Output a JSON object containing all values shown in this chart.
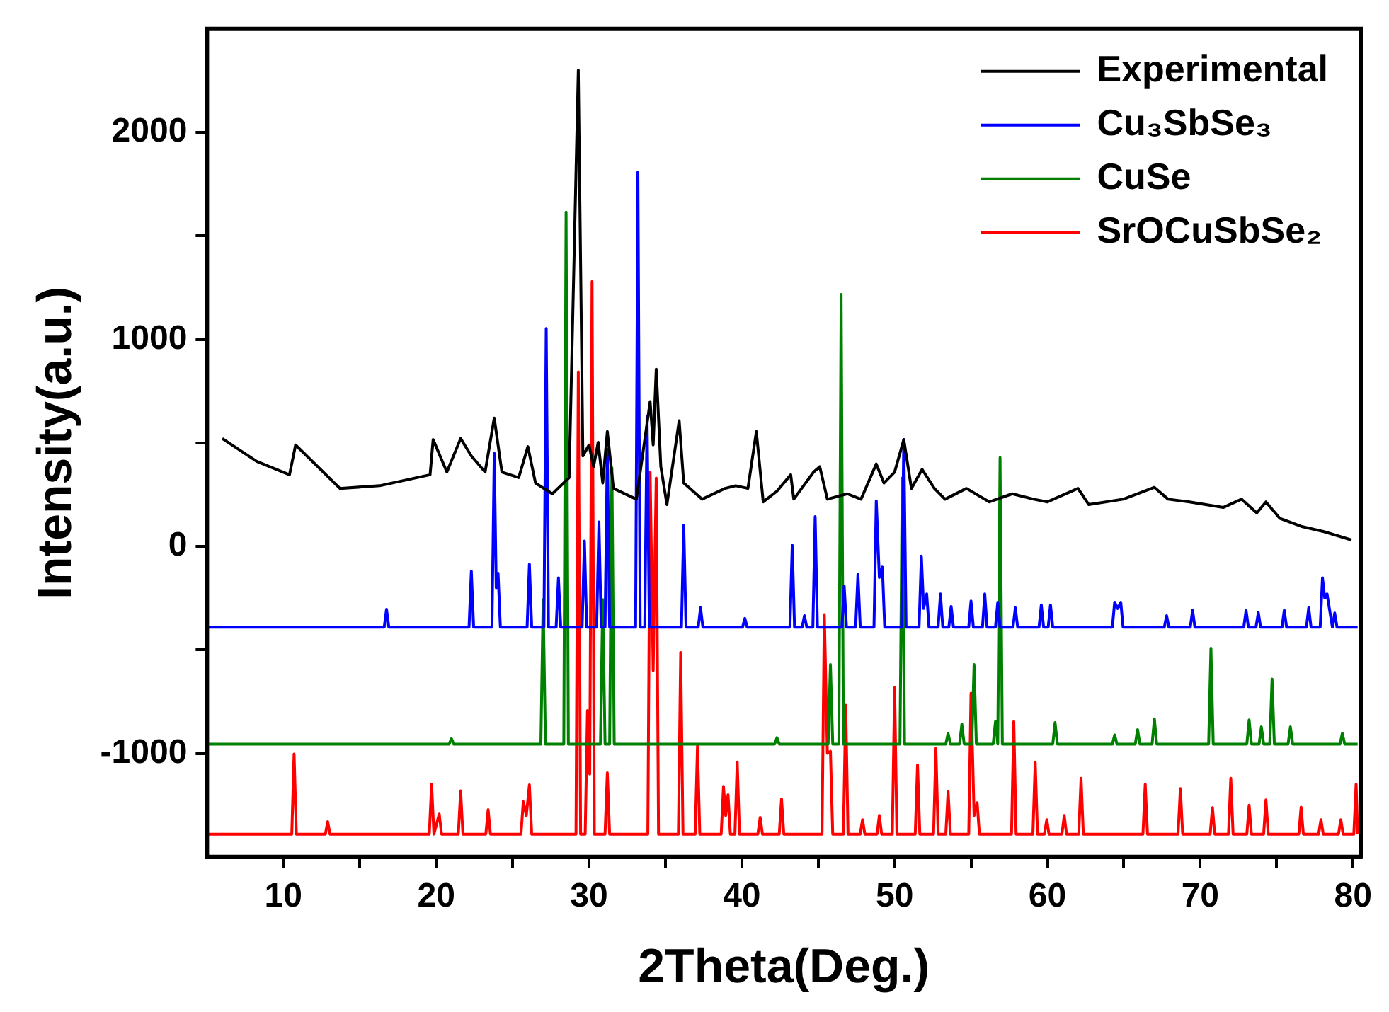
{
  "chart_data": {
    "type": "line",
    "xlabel": "2Theta(Deg.)",
    "ylabel": "Intensity(a.u.)",
    "xlim": [
      5,
      80.5
    ],
    "ylim": [
      -1500,
      2500
    ],
    "xticks": [
      10,
      {
        "value": 15,
        "label": null
      },
      20,
      {
        "value": 25,
        "label": null
      },
      30,
      {
        "value": 35,
        "label": null
      },
      40,
      {
        "value": 45,
        "label": null
      },
      50,
      {
        "value": 55,
        "label": null
      },
      60,
      {
        "value": 65,
        "label": null
      },
      70,
      {
        "value": 75,
        "label": null
      },
      80
    ],
    "yticks": [
      -1000,
      {
        "value": -500,
        "label": null
      },
      0,
      {
        "value": 500,
        "label": null
      },
      1000,
      {
        "value": 1500,
        "label": null
      },
      2000
    ],
    "grid": false,
    "legend": "top right",
    "marker": "none",
    "line_style": "solid",
    "series": [
      {
        "name": "Experimental",
        "color": "#000000",
        "x": [
          6,
          8.25,
          10.4,
          10.8,
          13.7,
          16.3,
          19.6,
          19.8,
          20.7,
          21.6,
          22.3,
          23.2,
          23.8,
          24.3,
          25.4,
          26.0,
          26.5,
          27.6,
          28.7,
          29.3,
          29.6,
          30.0,
          30.3,
          30.6,
          30.9,
          31.2,
          31.6,
          33.1,
          33.8,
          34.0,
          34.2,
          34.4,
          34.7,
          35.1,
          35.9,
          36.2,
          37.4,
          38.9,
          39.6,
          40.4,
          40.95,
          41.4,
          42.3,
          43.2,
          43.4,
          44.7,
          45.1,
          45.6,
          46.9,
          47.8,
          48.8,
          49.3,
          50.0,
          50.6,
          51.1,
          51.8,
          52.6,
          53.3,
          54.7,
          56.2,
          57.7,
          59.1,
          60.0,
          62.0,
          62.7,
          64.96,
          67.0,
          67.9,
          69.3,
          71.5,
          72.7,
          73.7,
          74.3,
          75.2,
          76.6,
          78.1,
          79.9
        ],
        "values": [
          521,
          411,
          346,
          490,
          280,
          293,
          346,
          516,
          359,
          521,
          437,
          359,
          620,
          359,
          332,
          482,
          306,
          254,
          332,
          2301,
          437,
          490,
          385,
          503,
          306,
          555,
          280,
          228,
          594,
          699,
          490,
          856,
          385,
          202,
          607,
          306,
          228,
          280,
          293,
          280,
          555,
          215,
          267,
          346,
          228,
          359,
          385,
          228,
          254,
          228,
          398,
          306,
          359,
          516,
          280,
          372,
          280,
          228,
          280,
          215,
          254,
          228,
          215,
          280,
          202,
          228,
          285,
          228,
          215,
          188,
          228,
          162,
          215,
          136,
          97,
          71,
          31
        ]
      },
      {
        "name": "Cu₃SbSe₃",
        "color": "#0000ff",
        "x": [
          5,
          16.6,
          16.75,
          16.9,
          22.15,
          22.3,
          22.45,
          23.65,
          23.8,
          23.93,
          24.05,
          24.2,
          25.95,
          26.1,
          26.25,
          27.05,
          27.2,
          27.35,
          27.85,
          28.0,
          28.15,
          29.55,
          29.7,
          29.85,
          30.5,
          30.65,
          30.8,
          31.05,
          31.2,
          31.35,
          33.05,
          33.2,
          33.35,
          33.65,
          33.8,
          33.95,
          36.05,
          36.2,
          36.35,
          37.15,
          37.3,
          37.45,
          40.05,
          40.2,
          40.35,
          43.15,
          43.3,
          43.45,
          43.95,
          44.1,
          44.25,
          44.65,
          44.8,
          44.95,
          46.55,
          46.7,
          46.85,
          47.45,
          47.6,
          47.75,
          48.65,
          48.8,
          49.0,
          49.2,
          49.35,
          50.45,
          50.6,
          50.75,
          51.6,
          51.75,
          51.9,
          52.1,
          52.25,
          52.85,
          53.0,
          53.15,
          53.55,
          53.7,
          53.85,
          54.85,
          55.0,
          55.15,
          55.75,
          55.9,
          56.05,
          56.6,
          56.75,
          56.9,
          57.75,
          57.9,
          58.05,
          59.45,
          59.6,
          59.75,
          60.05,
          60.2,
          60.35,
          64.25,
          64.4,
          64.6,
          64.8,
          64.95,
          67.65,
          67.8,
          67.95,
          69.35,
          69.5,
          69.65,
          72.85,
          73.0,
          73.15,
          73.65,
          73.8,
          73.95,
          75.35,
          75.5,
          75.65,
          76.95,
          77.1,
          77.25,
          77.85,
          78.0,
          78.15,
          78.3,
          78.45,
          78.65,
          78.8,
          78.95,
          80.3
        ],
        "values": [
          -390,
          -390,
          -304,
          -390,
          -390,
          -120,
          -390,
          -390,
          450,
          -200,
          -130,
          -390,
          -390,
          -86,
          -390,
          -390,
          1052,
          -390,
          -390,
          -152,
          -390,
          -390,
          26,
          -390,
          -390,
          118,
          -390,
          -390,
          469,
          -390,
          -390,
          1809,
          -390,
          -390,
          628,
          -390,
          -390,
          102,
          -390,
          -390,
          -296,
          -390,
          -390,
          -348,
          -390,
          -390,
          5,
          -390,
          -390,
          -335,
          -390,
          -390,
          144,
          -390,
          -390,
          -191,
          -390,
          -390,
          -134,
          -390,
          -390,
          220,
          -150,
          -100,
          -390,
          -390,
          516,
          -390,
          -390,
          -47,
          -300,
          -230,
          -390,
          -390,
          -230,
          -390,
          -390,
          -290,
          -390,
          -390,
          -264,
          -390,
          -390,
          -230,
          -390,
          -390,
          -270,
          -390,
          -390,
          -296,
          -390,
          -390,
          -283,
          -390,
          -390,
          -283,
          -390,
          -390,
          -270,
          -300,
          -270,
          -390,
          -390,
          -335,
          -390,
          -390,
          -309,
          -390,
          -390,
          -309,
          -390,
          -390,
          -320,
          -390,
          -390,
          -309,
          -390,
          -390,
          -296,
          -390,
          -390,
          -152,
          -250,
          -230,
          -300,
          -390,
          -322,
          -390,
          -390
        ]
      },
      {
        "name": "CuSe",
        "color": "#008000",
        "x": [
          5,
          20.85,
          21.0,
          21.15,
          26.85,
          27.0,
          27.15,
          28.35,
          28.5,
          28.65,
          30.75,
          30.9,
          31.05,
          31.35,
          31.5,
          31.65,
          42.15,
          42.3,
          42.45,
          45.65,
          45.8,
          45.95,
          46.35,
          46.5,
          46.65,
          50.35,
          50.5,
          50.65,
          53.35,
          53.5,
          53.65,
          54.25,
          54.4,
          54.55,
          55.05,
          55.2,
          55.35,
          56.45,
          56.6,
          56.75,
          56.9,
          57.05,
          60.35,
          60.5,
          60.65,
          64.25,
          64.4,
          64.55,
          65.75,
          65.9,
          66.05,
          66.85,
          67.0,
          67.15,
          70.55,
          70.7,
          70.85,
          73.05,
          73.2,
          73.35,
          73.85,
          74.0,
          74.15,
          74.55,
          74.7,
          74.85,
          75.75,
          75.9,
          76.05,
          79.15,
          79.3,
          79.45,
          80.3
        ],
        "values": [
          -955,
          -955,
          -929,
          -955,
          -955,
          -257,
          -955,
          -955,
          1615,
          -955,
          -955,
          -257,
          -955,
          -955,
          380,
          -955,
          -955,
          -924,
          -955,
          -955,
          -571,
          -955,
          -955,
          1217,
          -955,
          -955,
          330,
          -955,
          -955,
          -903,
          -955,
          -955,
          -859,
          -955,
          -955,
          -571,
          -955,
          -955,
          -846,
          -955,
          429,
          -955,
          -955,
          -851,
          -955,
          -955,
          -911,
          -955,
          -955,
          -885,
          -955,
          -955,
          -833,
          -955,
          -955,
          -492,
          -955,
          -955,
          -838,
          -955,
          -955,
          -872,
          -955,
          -955,
          -641,
          -955,
          -955,
          -872,
          -955,
          -955,
          -903,
          -955,
          -955
        ]
      },
      {
        "name": "SrOCuSbSe₂",
        "color": "#ff0000",
        "x": [
          5,
          10.55,
          10.7,
          10.85,
          12.75,
          12.9,
          13.05,
          19.55,
          19.7,
          19.85,
          20.2,
          20.35,
          21.45,
          21.6,
          21.75,
          23.25,
          23.4,
          23.55,
          25.55,
          25.7,
          25.9,
          26.1,
          26.25,
          29.15,
          29.3,
          29.45,
          29.75,
          29.9,
          30.05,
          30.2,
          30.35,
          31.05,
          31.2,
          31.35,
          33.85,
          34.0,
          34.2,
          34.4,
          34.55,
          35.85,
          36.0,
          36.15,
          36.95,
          37.1,
          37.25,
          38.65,
          38.8,
          38.95,
          39.1,
          39.25,
          39.55,
          39.7,
          39.85,
          41.05,
          41.2,
          41.35,
          42.45,
          42.6,
          42.75,
          45.25,
          45.4,
          45.6,
          45.8,
          45.95,
          46.65,
          46.8,
          46.95,
          47.75,
          47.9,
          48.05,
          48.85,
          49.0,
          49.15,
          49.85,
          50.0,
          50.15,
          51.35,
          51.5,
          51.65,
          52.55,
          52.7,
          52.85,
          53.35,
          53.5,
          53.65,
          54.85,
          55.0,
          55.2,
          55.4,
          55.55,
          57.65,
          57.8,
          57.95,
          59.05,
          59.2,
          59.35,
          59.8,
          59.96,
          60.1,
          60.95,
          61.1,
          61.25,
          62.05,
          62.2,
          62.35,
          66.25,
          66.4,
          66.55,
          68.55,
          68.7,
          68.85,
          70.65,
          70.8,
          70.95,
          71.85,
          72.0,
          72.15,
          73.05,
          73.2,
          73.35,
          74.15,
          74.3,
          74.45,
          76.45,
          76.6,
          76.75,
          77.75,
          77.9,
          78.05,
          79.05,
          79.2,
          79.35,
          80.05,
          80.2,
          80.3
        ],
        "values": [
          -1390,
          -1390,
          -1003,
          -1390,
          -1390,
          -1330,
          -1390,
          -1390,
          -1149,
          -1390,
          -1293,
          -1390,
          -1390,
          -1181,
          -1390,
          -1390,
          -1272,
          -1390,
          -1390,
          -1233,
          -1300,
          -1152,
          -1390,
          -1390,
          843,
          -1390,
          -1390,
          -793,
          -1100,
          1280,
          -1390,
          -1390,
          -1094,
          -1390,
          -1390,
          359,
          -600,
          330,
          -1390,
          -1390,
          -513,
          -1390,
          -1390,
          -963,
          -1390,
          -1390,
          -1160,
          -1300,
          -1200,
          -1390,
          -1390,
          -1042,
          -1390,
          -1390,
          -1309,
          -1390,
          -1390,
          -1220,
          -1390,
          -1390,
          -330,
          -1000,
          -990,
          -1390,
          -1390,
          -767,
          -1390,
          -1390,
          -1320,
          -1390,
          -1390,
          -1300,
          -1390,
          -1390,
          -683,
          -1390,
          -1390,
          -1055,
          -1390,
          -1390,
          -976,
          -1390,
          -1390,
          -1183,
          -1390,
          -1390,
          -709,
          -1300,
          -1238,
          -1390,
          -1390,
          -846,
          -1390,
          -1390,
          -1042,
          -1390,
          -1390,
          -1320,
          -1390,
          -1390,
          -1300,
          -1390,
          -1390,
          -1120,
          -1390,
          -1390,
          -1149,
          -1390,
          -1390,
          -1170,
          -1390,
          -1390,
          -1262,
          -1390,
          -1390,
          -1120,
          -1390,
          -1390,
          -1250,
          -1390,
          -1390,
          -1225,
          -1390,
          -1390,
          -1260,
          -1390,
          -1390,
          -1320,
          -1390,
          -1390,
          -1320,
          -1390,
          -1390,
          -1149,
          -1390
        ]
      }
    ]
  }
}
